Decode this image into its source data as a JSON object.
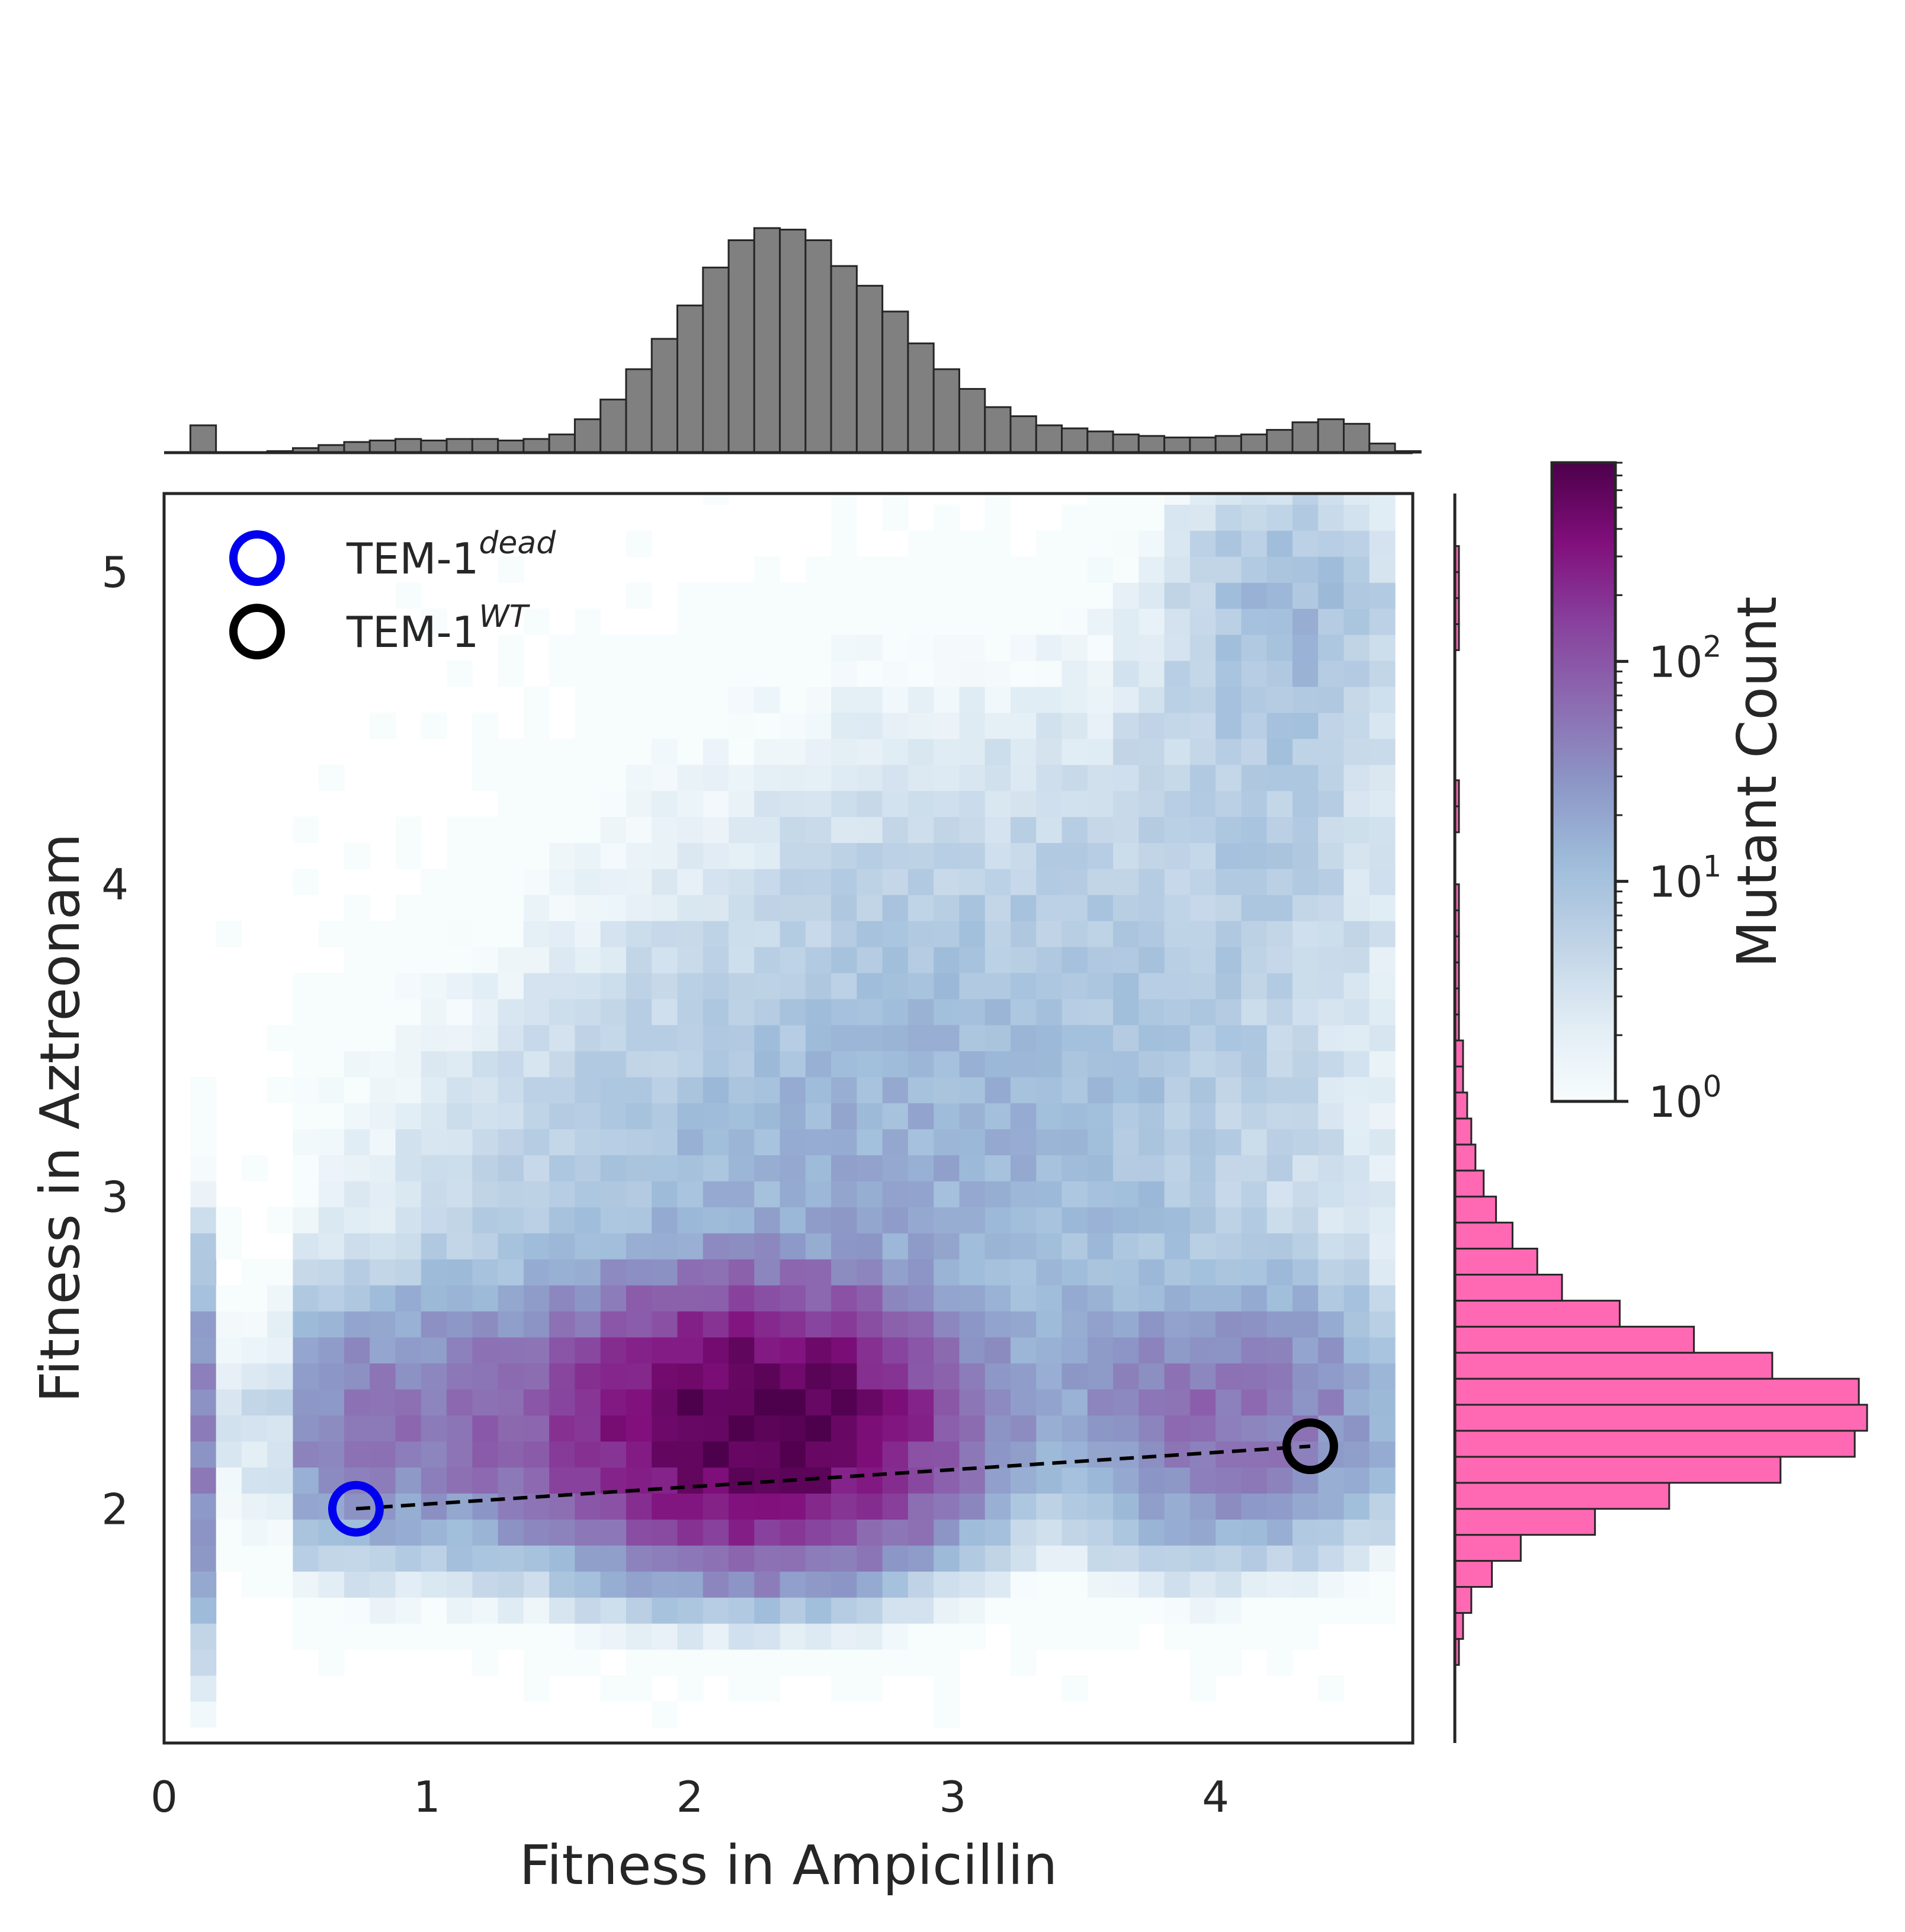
{
  "chart_data": {
    "type": "heatmap",
    "xlabel": "Fitness in Ampicillin",
    "ylabel": "Fitness in Aztreonam",
    "xlim": [
      0,
      4.75
    ],
    "ylim": [
      1.25,
      5.25
    ],
    "xticks": [
      "0",
      "1",
      "2",
      "3",
      "4"
    ],
    "yticks": [
      "2",
      "3",
      "4",
      "5"
    ],
    "grid": false,
    "colormap": [
      "#f7fcfd",
      "#e0ecf4",
      "#bfd3e6",
      "#9ebcda",
      "#8c96c6",
      "#8c6bb1",
      "#88419d",
      "#810f7c",
      "#4d004b"
    ],
    "colorbar": {
      "label": "Mutant Count",
      "scale": "log",
      "range": [
        1,
        800
      ],
      "ticks": [
        {
          "base": "10",
          "exp": "0",
          "value": 1
        },
        {
          "base": "10",
          "exp": "1",
          "value": 10
        },
        {
          "base": "10",
          "exp": "2",
          "value": 100
        }
      ]
    },
    "legend": {
      "placement": "top-left",
      "entries": [
        {
          "base": "TEM-1",
          "sup": "dead",
          "color": "#0000ee"
        },
        {
          "base": "TEM-1",
          "sup": "WT",
          "color": "#000000"
        }
      ]
    },
    "points": [
      {
        "name": "TEM-1 dead",
        "x": 0.73,
        "y": 2.0,
        "color": "#0000ee"
      },
      {
        "name": "TEM-1 WT",
        "x": 4.36,
        "y": 2.2,
        "color": "#000000"
      }
    ],
    "line": {
      "from": [
        0.73,
        2.0
      ],
      "to": [
        4.36,
        2.2
      ],
      "style": "dashed",
      "color": "#000000"
    },
    "x_marginal": {
      "bins_start": 0.1,
      "bin_width": 0.0975,
      "color": "#808080",
      "counts": [
        18,
        0,
        0,
        1,
        3,
        5,
        7,
        8,
        9,
        8,
        9,
        9,
        8,
        9,
        12,
        22,
        35,
        55,
        75,
        97,
        122,
        140,
        148,
        147,
        140,
        123,
        110,
        93,
        72,
        55,
        42,
        30,
        24,
        18,
        16,
        14,
        12,
        11,
        10,
        10,
        11,
        12,
        15,
        20,
        22,
        19,
        6,
        1
      ]
    },
    "y_marginal": {
      "bins_start": 1.25,
      "bin_width": 0.0833,
      "color": "#ff69b4",
      "counts": [
        0,
        0,
        0,
        1,
        2,
        4,
        9,
        16,
        34,
        52,
        79,
        97,
        100,
        98,
        77,
        58,
        40,
        26,
        20,
        14,
        10,
        7,
        5,
        4,
        3,
        2,
        2,
        1,
        1,
        1,
        1,
        1,
        1,
        0,
        0,
        1,
        1,
        0,
        0,
        0,
        0,
        0,
        1,
        1,
        1,
        1,
        0,
        0
      ]
    }
  }
}
